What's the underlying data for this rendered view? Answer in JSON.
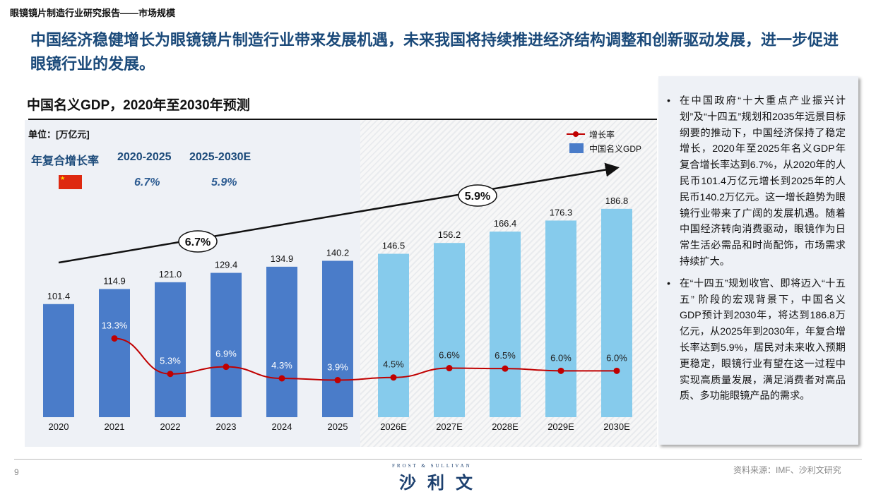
{
  "breadcrumb": "眼镜镜片制造行业研究报告——市场规模",
  "headline": "中国经济稳健增长为眼镜镜片制造行业带来发展机遇，未来我国将持续推进经济结构调整和创新驱动发展，进一步促进眼镜行业的发展。",
  "chart_title": "中国名义GDP，2020年至2030年预测",
  "unit": "单位：[万亿元]",
  "cagr": {
    "label": "年复合增长率",
    "periods": [
      "2020-2025",
      "2025-2030E"
    ],
    "values": [
      "6.7%",
      "5.9%"
    ],
    "flag": "china-flag"
  },
  "legend": {
    "line": "增长率",
    "bar": "中国名义GDP"
  },
  "colors": {
    "actual_bar": "#4a7cc9",
    "forecast_bar": "#86cbec",
    "growth_line": "#c00000",
    "headline": "#1b4a7a"
  },
  "chart_data": {
    "type": "bar+line",
    "categories": [
      "2020",
      "2021",
      "2022",
      "2023",
      "2024",
      "2025",
      "2026E",
      "2027E",
      "2028E",
      "2029E",
      "2030E"
    ],
    "series": [
      {
        "name": "中国名义GDP",
        "type": "bar",
        "values": [
          101.4,
          114.9,
          121.0,
          129.4,
          134.9,
          140.2,
          146.5,
          156.2,
          166.4,
          176.3,
          186.8
        ],
        "labels": [
          "101.4",
          "114.9",
          "121.0",
          "129.4",
          "134.9",
          "140.2",
          "146.5",
          "156.2",
          "166.4",
          "176.3",
          "186.8"
        ]
      },
      {
        "name": "增长率",
        "type": "line",
        "values": [
          null,
          13.3,
          5.3,
          6.9,
          4.3,
          3.9,
          4.5,
          6.6,
          6.5,
          6.0,
          6.0
        ],
        "labels": [
          "",
          "13.3%",
          "5.3%",
          "6.9%",
          "4.3%",
          "3.9%",
          "4.5%",
          "6.6%",
          "6.5%",
          "6.0%",
          "6.0%"
        ]
      }
    ],
    "forecast_start": "2026E",
    "trend_annotations": [
      "6.7%",
      "5.9%"
    ]
  },
  "sidebar": {
    "bullets": [
      "在中国政府“十大重点产业振兴计划”及“十四五”规划和2035年远景目标纲要的推动下，中国经济保持了稳定增长，2020年至2025年名义GDP年复合增长率达到6.7%，从2020年的人民币101.4万亿元增长到2025年的人民币140.2万亿元。这一增长趋势为眼镜行业带来了广阔的发展机遇。随着中国经济转向消费驱动，眼镜作为日常生活必需品和时尚配饰，市场需求持续扩大。",
      "在“十四五”规划收官、即将迈入“十五五” 阶段的宏观背景下，中国名义GDP预计到2030年，将达到186.8万亿元，从2025年到2030年，年复合增长率达到5.9%，居民对未来收入预期更稳定，眼镜行业有望在这一过程中实现高质量发展，满足消费者对高品质、多功能眼镜产品的需求。"
    ]
  },
  "footer": {
    "page": "9",
    "source": "资料来源：IMF、沙利文研究",
    "logo_en": "FROST & SULLIVAN",
    "logo_cn": "沙利文"
  }
}
